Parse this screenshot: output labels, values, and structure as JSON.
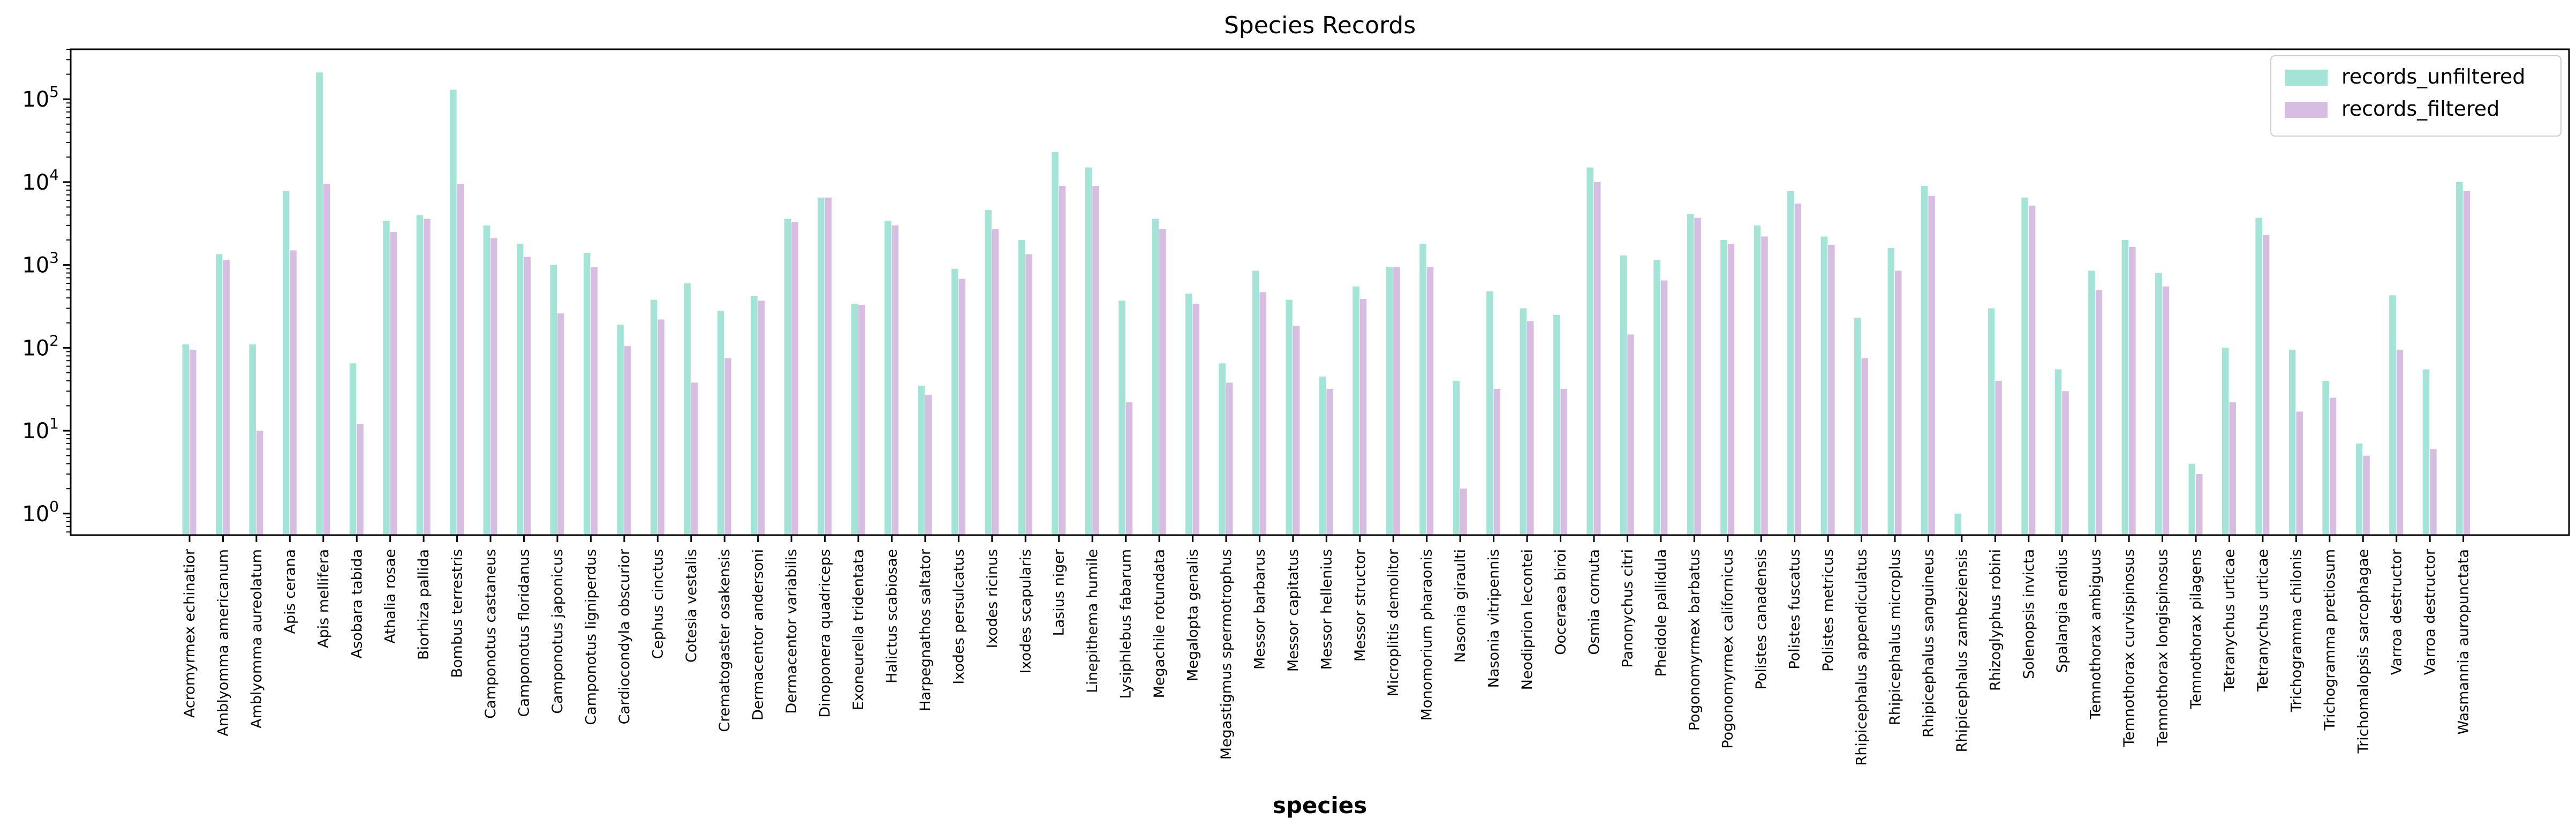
{
  "chart_data": {
    "type": "bar",
    "title": "Species Records",
    "xlabel": "species",
    "ylabel": "",
    "yscale": "log",
    "ylim": [
      0.55,
      400000
    ],
    "ytick_values": [
      1,
      10,
      100,
      1000,
      10000,
      100000
    ],
    "ytick_labels": [
      {
        "base": "10",
        "exp": "0"
      },
      {
        "base": "10",
        "exp": "1"
      },
      {
        "base": "10",
        "exp": "2"
      },
      {
        "base": "10",
        "exp": "3"
      },
      {
        "base": "10",
        "exp": "4"
      },
      {
        "base": "10",
        "exp": "5"
      }
    ],
    "legend_position": "top-right",
    "grid": false,
    "categories": [
      "Acromyrmex echinatior",
      "Amblyomma americanum",
      "Amblyomma aureolatum",
      "Apis cerana",
      "Apis mellifera",
      "Asobara tabida",
      "Athalia rosae",
      "Biorhiza pallida",
      "Bombus terrestris",
      "Camponotus castaneus",
      "Camponotus floridanus",
      "Camponotus japonicus",
      "Camponotus ligniperdus",
      "Cardiocondyla obscurior",
      "Cephus cinctus",
      "Cotesia vestalis",
      "Crematogaster osakensis",
      "Dermacentor andersoni",
      "Dermacentor variabilis",
      "Dinoponera quadriceps",
      "Exoneurella tridentata",
      "Halictus scabiosae",
      "Harpegnathos saltator",
      "Ixodes persulcatus",
      "Ixodes ricinus",
      "Ixodes scapularis",
      "Lasius niger",
      "Linepithema humile",
      "Lysiphlebus fabarum",
      "Megachile rotundata",
      "Megalopta genalis",
      "Megastigmus spermotrophus",
      "Messor barbarus",
      "Messor capitatus",
      "Messor hellenius",
      "Messor structor",
      "Microplitis demolitor",
      "Monomorium pharaonis",
      "Nasonia giraulti",
      "Nasonia vitripennis",
      "Neodiprion lecontei",
      "Ooceraea biroi",
      "Osmia cornuta",
      "Panonychus citri",
      "Pheidole pallidula",
      "Pogonomyrmex barbatus",
      "Pogonomyrmex californicus",
      "Polistes canadensis",
      "Polistes fuscatus",
      "Polistes metricus",
      "Rhipicephalus appendiculatus",
      "Rhipicephalus microplus",
      "Rhipicephalus sanguineus",
      "Rhipicephalus zambeziensis",
      "Rhizoglyphus robini",
      "Solenopsis invicta",
      "Spalangia endius",
      "Temnothorax ambiguus",
      "Temnothorax curvispinosus",
      "Temnothorax longispinosus",
      "Temnothorax pilagens",
      "Tetranychus urticae",
      "Tetranychus urticae",
      "Trichogramma chilonis",
      "Trichogramma pretiosum",
      "Trichomalopsis sarcophagae",
      "Varroa destructor",
      "Varroa destructor",
      "Wasmannia auropunctata"
    ],
    "series": [
      {
        "name": "records_unfiltered",
        "color": "#a3e4d7",
        "values": [
          110,
          1350,
          110,
          7800,
          210000,
          65,
          3400,
          4000,
          130000,
          3000,
          1800,
          1000,
          1400,
          190,
          380,
          600,
          280,
          420,
          3600,
          6500,
          340,
          3400,
          35,
          900,
          4600,
          2000,
          23000,
          15000,
          370,
          3600,
          450,
          65,
          850,
          380,
          45,
          550,
          950,
          1800,
          40,
          480,
          300,
          250,
          15000,
          1300,
          1150,
          4100,
          2000,
          3000,
          7800,
          2200,
          230,
          1600,
          9000,
          1,
          300,
          6500,
          55,
          850,
          2000,
          800,
          4,
          100,
          3700,
          95,
          40,
          7,
          430,
          55,
          10000
        ]
      },
      {
        "name": "records_filtered",
        "color": "#d7bde2",
        "values": [
          95,
          1150,
          10,
          1500,
          9500,
          12,
          2500,
          3600,
          9500,
          2100,
          1250,
          260,
          950,
          105,
          220,
          38,
          75,
          370,
          3300,
          6500,
          330,
          3000,
          27,
          680,
          2700,
          1350,
          9000,
          9000,
          22,
          2700,
          340,
          38,
          470,
          185,
          32,
          390,
          950,
          950,
          2,
          32,
          210,
          32,
          10000,
          145,
          650,
          3700,
          1800,
          2200,
          5500,
          1750,
          75,
          850,
          6800,
          null,
          40,
          5200,
          30,
          500,
          1650,
          550,
          3,
          22,
          2300,
          17,
          25,
          5,
          95,
          6,
          7800
        ]
      }
    ]
  }
}
